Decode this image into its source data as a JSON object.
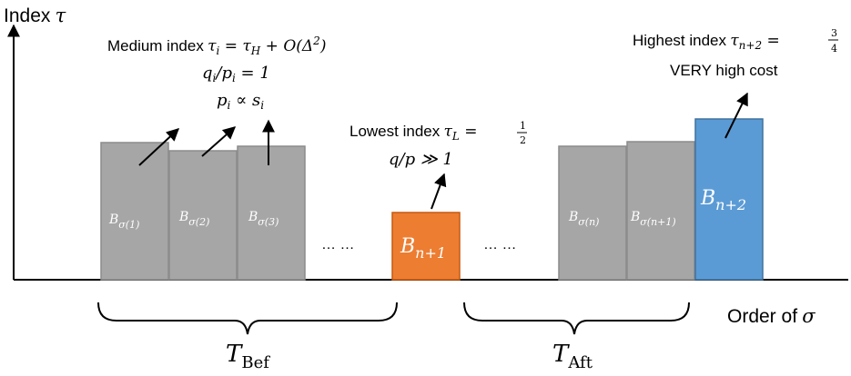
{
  "axes": {
    "y_label": "Index",
    "y_symbol": "τ",
    "x_label": "Order of",
    "x_symbol": "σ"
  },
  "annotations": {
    "medium": {
      "line1_text": "Medium index",
      "line1_math": "τ_i = τ_H + O(Δ²)",
      "line2": "q_i/p_i = 1",
      "line3": "p_i ∝ s_i"
    },
    "lowest": {
      "line1_text": "Lowest index",
      "line1_math": "τ_L = 1/2",
      "line2": "q/p ≫ 1"
    },
    "highest": {
      "line1_text": "Highest index",
      "line1_math": "τ_{n+2} = 3/4",
      "line2": "VERY high cost"
    }
  },
  "bars": [
    {
      "label": "B_σ(1)",
      "color": "#a6a6a6",
      "role": "before"
    },
    {
      "label": "B_σ(2)",
      "color": "#a6a6a6",
      "role": "before"
    },
    {
      "label": "B_σ(3)",
      "color": "#a6a6a6",
      "role": "before"
    },
    {
      "label": "B_n+1",
      "color": "#ed7d31",
      "role": "lowest"
    },
    {
      "label": "B_σ(n)",
      "color": "#a6a6a6",
      "role": "after"
    },
    {
      "label": "B_σ(n+1)",
      "color": "#a6a6a6",
      "role": "after"
    },
    {
      "label": "B_n+2",
      "color": "#5b9bd5",
      "role": "highest"
    }
  ],
  "ellipses": [
    "… …",
    "… …"
  ],
  "groups": {
    "before": {
      "main": "T",
      "sub": "Bef"
    },
    "after": {
      "main": "T",
      "sub": "Aft"
    }
  },
  "colors": {
    "gray_bar": "#a6a6a6",
    "gray_edge": "#8c8c8c",
    "orange": "#ed7d31",
    "blue": "#5b9bd5",
    "axis": "#000000"
  }
}
